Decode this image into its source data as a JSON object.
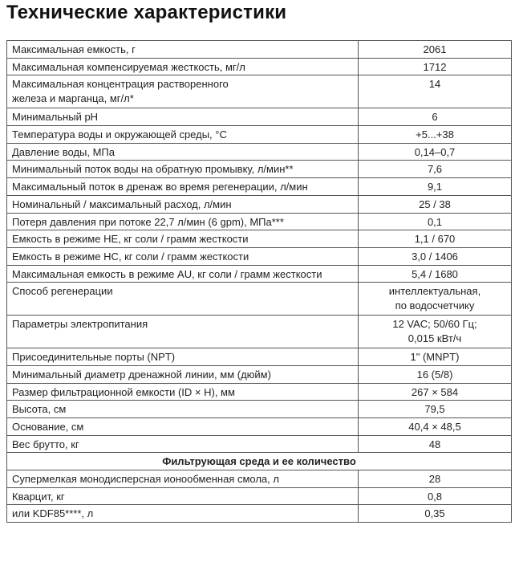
{
  "title": "Технические характеристики",
  "rows": [
    {
      "label": "Максимальная емкость, г",
      "value": "2061"
    },
    {
      "label": "Максимальная компенсируемая жесткость, мг/л",
      "value": "1712"
    },
    {
      "label": "Максимальная концентрация растворенного\nжелеза и марганца, мг/л*",
      "value": "14"
    },
    {
      "label": "Минимальный pH",
      "value": "6"
    },
    {
      "label": "Температура воды и окружающей среды, °С",
      "value": "+5...+38"
    },
    {
      "label": "Давление воды, МПа",
      "value": "0,14–0,7"
    },
    {
      "label": "Минимальный поток воды на обратную промывку, л/мин**",
      "value": "7,6"
    },
    {
      "label": "Максимальный поток в дренаж во время регенерации, л/мин",
      "value": "9,1"
    },
    {
      "label": "Номинальный / максимальный расход, л/мин",
      "value": "25 / 38"
    },
    {
      "label": "Потеря давления при потоке 22,7 л/мин (6 gpm), МПа***",
      "value": "0,1"
    },
    {
      "label": "Емкость в режиме HE, кг соли / грамм жесткости",
      "value": "1,1 / 670"
    },
    {
      "label": "Емкость в режиме HC, кг соли / грамм жесткости",
      "value": "3,0 / 1406"
    },
    {
      "label": "Максимальная емкость в режиме AU, кг соли / грамм жесткости",
      "value": "5,4 / 1680"
    },
    {
      "label": "Способ регенерации",
      "value": "интеллектуальная,\nпо водосчетчику"
    },
    {
      "label": "Параметры электропитания",
      "value": "12 VAC; 50/60 Гц;\n0,015 кВт/ч"
    },
    {
      "label": "Присоединительные порты (NPT)",
      "value": "1\" (MNPT)"
    },
    {
      "label": "Минимальный диаметр дренажной линии, мм (дюйм)",
      "value": "16 (5/8)"
    },
    {
      "label": "Размер фильтрационной емкости (ID × H), мм",
      "value": "267 × 584"
    },
    {
      "label": "Высота, см",
      "value": "79,5"
    },
    {
      "label": "Основание, см",
      "value": "40,4 × 48,5"
    },
    {
      "label": "Вес брутто, кг",
      "value": "48"
    }
  ],
  "section": "Фильтрующая среда и ее количество",
  "media_rows": [
    {
      "label": "Супермелкая монодисперсная ионообменная смола, л",
      "value": "28"
    },
    {
      "label": "Кварцит, кг",
      "value": "0,8"
    },
    {
      "label": "или KDF85****, л",
      "value": "0,35"
    }
  ]
}
